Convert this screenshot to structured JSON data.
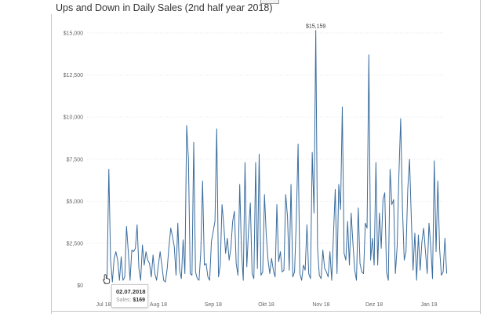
{
  "title": "Ups and Down in Daily Sales (2nd half year 2018)",
  "tooltip": {
    "date": "02.07.2018",
    "field_label": "Sales:",
    "value": "$169"
  },
  "chart_data": {
    "type": "line",
    "title": "Ups and Down in Daily Sales (2nd half year 2018)",
    "xlabel": "",
    "ylabel": "",
    "x_start": "2018-07-02",
    "x_ticks": [
      {
        "label": "Jul 18",
        "date": "2018-07-01"
      },
      {
        "label": "Aug 18",
        "date": "2018-08-01"
      },
      {
        "label": "Sep 18",
        "date": "2018-09-01"
      },
      {
        "label": "Okt 18",
        "date": "2018-10-01"
      },
      {
        "label": "Nov 18",
        "date": "2018-11-01"
      },
      {
        "label": "Dez 18",
        "date": "2018-12-01"
      },
      {
        "label": "Jan 19",
        "date": "2019-01-01"
      }
    ],
    "y_ticks": [
      {
        "label": "$0",
        "value": 0
      },
      {
        "label": "$2,500",
        "value": 2500
      },
      {
        "label": "$5,000",
        "value": 5000
      },
      {
        "label": "$7,500",
        "value": 7500
      },
      {
        "label": "$10,000",
        "value": 10000
      },
      {
        "label": "$12,500",
        "value": 12500
      },
      {
        "label": "$15,000",
        "value": 15000
      }
    ],
    "ylim": [
      0,
      15600
    ],
    "grid": true,
    "annotation": {
      "label": "$15,159",
      "value": 15159
    },
    "series": [
      {
        "values": [
          169,
          400,
          6900,
          1500,
          200,
          1600,
          2000,
          1500,
          300,
          1700,
          300,
          500,
          3500,
          2000,
          300,
          2100,
          2000,
          2200,
          3600,
          1000,
          300,
          2400,
          1200,
          2000,
          1500,
          1300,
          500,
          1800,
          700,
          300,
          1200,
          2000,
          1200,
          300,
          200,
          1000,
          2300,
          3400,
          2900,
          2300,
          600,
          3700,
          900,
          400,
          2700,
          700,
          9500,
          7500,
          700,
          600,
          8500,
          800,
          400,
          300,
          2000,
          6200,
          1200,
          1300,
          500,
          300,
          2600,
          3200,
          3800,
          9300,
          500,
          1200,
          4800,
          3600,
          1900,
          2800,
          1500,
          2200,
          3800,
          4400,
          1300,
          600,
          6000,
          2000,
          300,
          7300,
          1100,
          3300,
          4900,
          700,
          400,
          7300,
          1000,
          7800,
          600,
          800,
          5400,
          3000,
          1500,
          700,
          1600,
          900,
          500,
          4800,
          1400,
          2000,
          800,
          900,
          5400,
          4100,
          900,
          6000,
          500,
          800,
          3900,
          8400,
          700,
          300,
          1200,
          900,
          3600,
          700,
          400,
          7900,
          4300,
          15159,
          2200,
          600,
          400,
          2100,
          1000,
          800,
          500,
          2000,
          300,
          3000,
          5700,
          700,
          6000,
          4500,
          10600,
          1900,
          1500,
          3800,
          1200,
          4300,
          2500,
          900,
          300,
          4600,
          1300,
          800,
          700,
          3700,
          3400,
          13700,
          1500,
          2800,
          1200,
          7300,
          1200,
          4300,
          2200,
          5100,
          5500,
          800,
          300,
          6900,
          4800,
          5100,
          700,
          2300,
          6600,
          9900,
          4600,
          1500,
          2000,
          5700,
          7500,
          4000,
          900,
          3100,
          300,
          3000,
          900,
          2600,
          3400,
          2000,
          700,
          3700,
          2300,
          400,
          7400,
          2000,
          6200,
          2200,
          600,
          800,
          2800,
          700
        ]
      }
    ]
  }
}
